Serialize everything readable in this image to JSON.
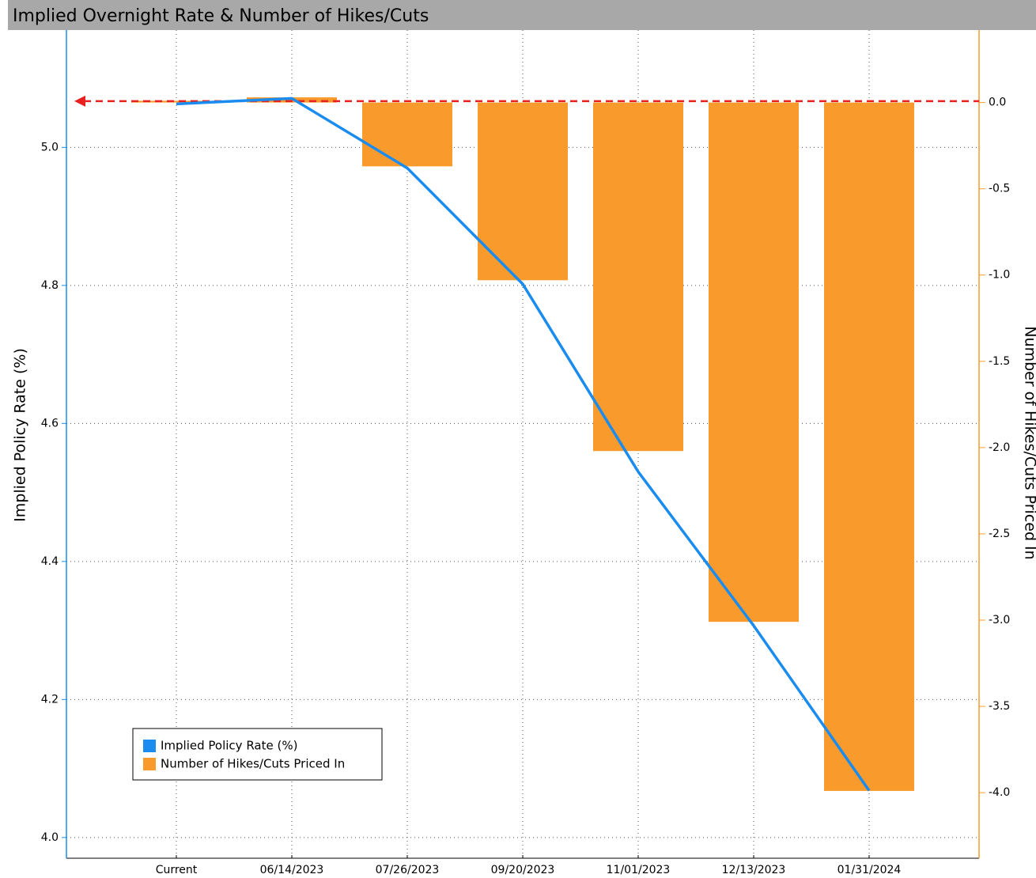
{
  "chart_data": {
    "type": "bar-line",
    "title": "Implied Overnight Rate & Number of Hikes/Cuts",
    "categories": [
      "Current",
      "06/14/2023",
      "07/26/2023",
      "09/20/2023",
      "11/01/2023",
      "12/13/2023",
      "01/31/2024"
    ],
    "series": [
      {
        "name": "Implied Policy Rate (%)",
        "type": "line",
        "axis": "y",
        "color": "#1a8cf0",
        "values": [
          5.063,
          5.071,
          4.97,
          4.802,
          4.53,
          4.307,
          4.068
        ]
      },
      {
        "name": "Number of Hikes/Cuts Priced In",
        "type": "bar",
        "axis": "y2",
        "color": "#f99b2c",
        "values": [
          0.01,
          0.03,
          -0.37,
          -1.03,
          -2.02,
          -3.01,
          -3.99
        ]
      }
    ],
    "ylabel": "Implied Policy Rate (%)",
    "y2label": "Number of Hikes/Cuts Priced In",
    "ylim": [
      3.97,
      5.17
    ],
    "yticks": [
      {
        "value": 4.0,
        "label": "4.0"
      },
      4.2,
      4.4,
      4.6,
      4.8,
      {
        "value": 5.0,
        "label": "5.0"
      }
    ],
    "y2lim": [
      -4.38,
      0.42
    ],
    "y2ticks": [
      {
        "value": -4.0,
        "label": "-4.0"
      },
      -3.5,
      {
        "value": -3.0,
        "label": "-3.0"
      },
      -2.5,
      {
        "value": -2.0,
        "label": "-2.0"
      },
      -1.5,
      {
        "value": -1.0,
        "label": "-1.0"
      },
      -0.5,
      {
        "value": 0.0,
        "label": "0.0"
      }
    ],
    "reference_line": {
      "value": 5.067,
      "axis": "y",
      "color": "#e8201f"
    },
    "grid": true,
    "legend": "lower left"
  }
}
